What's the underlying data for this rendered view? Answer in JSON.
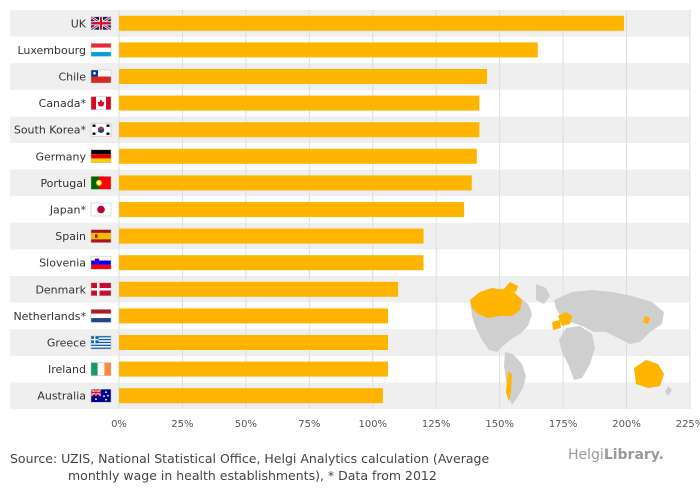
{
  "chart_data": {
    "type": "bar",
    "orientation": "horizontal",
    "categories": [
      "UK",
      "Luxembourg",
      "Chile",
      "Canada*",
      "South Korea*",
      "Germany",
      "Portugal",
      "Japan*",
      "Spain",
      "Slovenia",
      "Denmark",
      "Netherlands*",
      "Greece",
      "Ireland",
      "Australia"
    ],
    "values": [
      199,
      165,
      145,
      142,
      142,
      141,
      139,
      136,
      120,
      120,
      110,
      106,
      106,
      106,
      104
    ],
    "xlim": [
      0,
      225
    ],
    "xticks": [
      "0%",
      "25%",
      "50%",
      "75%",
      "100%",
      "125%",
      "150%",
      "175%",
      "200%",
      "225%"
    ],
    "bar_color": "#ffb400",
    "stripe_color": "#efefef",
    "grid": true
  },
  "flag_icons": [
    "uk-flag-icon",
    "luxembourg-flag-icon",
    "chile-flag-icon",
    "canada-flag-icon",
    "south-korea-flag-icon",
    "germany-flag-icon",
    "portugal-flag-icon",
    "japan-flag-icon",
    "spain-flag-icon",
    "slovenia-flag-icon",
    "denmark-flag-icon",
    "netherlands-flag-icon",
    "greece-flag-icon",
    "ireland-flag-icon",
    "australia-flag-icon"
  ],
  "footer": {
    "source_line1": "Source: UZIS, National Statistical Office, Helgi Analytics calculation (Average",
    "source_line2": "monthly wage in health establishments), * Data from 2012",
    "logo_prefix": "Helgi",
    "logo_suffix": "Library."
  }
}
